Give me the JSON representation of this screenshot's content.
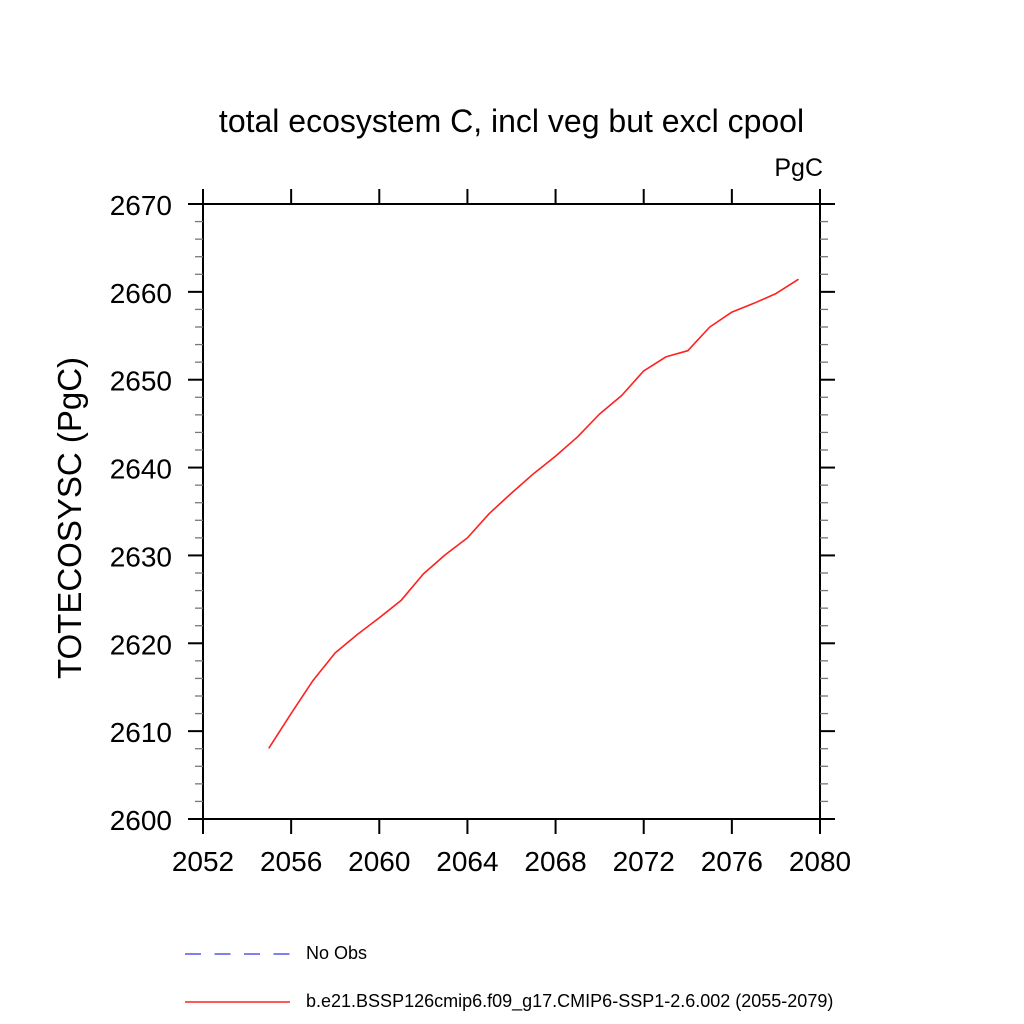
{
  "chart_data": {
    "type": "line",
    "title": "total ecosystem C, incl veg but excl cpool",
    "units_label": "PgC",
    "ylabel": "TOTECOSYSC  (PgC)",
    "xlabel": "",
    "xlim": [
      2052,
      2080
    ],
    "ylim": [
      2600,
      2670
    ],
    "x_ticks": [
      2052,
      2056,
      2060,
      2064,
      2068,
      2072,
      2076,
      2080
    ],
    "y_major_ticks": [
      2600,
      2610,
      2620,
      2630,
      2640,
      2650,
      2660,
      2670
    ],
    "y_minor_step": 2,
    "grid": false,
    "axis_color": "#000000",
    "minor_tick_color": "#777777",
    "series": [
      {
        "name": "b.e21.BSSP126cmip6.f09_g17.CMIP6-SSP1-2.6.002 (2055-2079)",
        "color": "#ff2020",
        "style": "solid",
        "x": [
          2055,
          2056,
          2057,
          2058,
          2059,
          2060,
          2061,
          2062,
          2063,
          2064,
          2065,
          2066,
          2067,
          2068,
          2069,
          2070,
          2071,
          2072,
          2073,
          2074,
          2075,
          2076,
          2077,
          2078,
          2079
        ],
        "values": [
          2608.1,
          2612.0,
          2615.8,
          2618.9,
          2621.0,
          2622.9,
          2624.9,
          2627.9,
          2630.1,
          2632.0,
          2634.8,
          2637.1,
          2639.3,
          2641.3,
          2643.5,
          2646.1,
          2648.2,
          2651.0,
          2652.6,
          2653.3,
          2656.0,
          2657.7,
          2658.7,
          2659.8,
          2661.4
        ]
      }
    ],
    "legend": [
      {
        "label": "No Obs",
        "color": "#6e6eeb",
        "style": "dashed"
      },
      {
        "label": "b.e21.BSSP126cmip6.f09_g17.CMIP6-SSP1-2.6.002 (2055-2079)",
        "color": "#ff2020",
        "style": "solid"
      }
    ],
    "legend_position": "bottom-left"
  }
}
